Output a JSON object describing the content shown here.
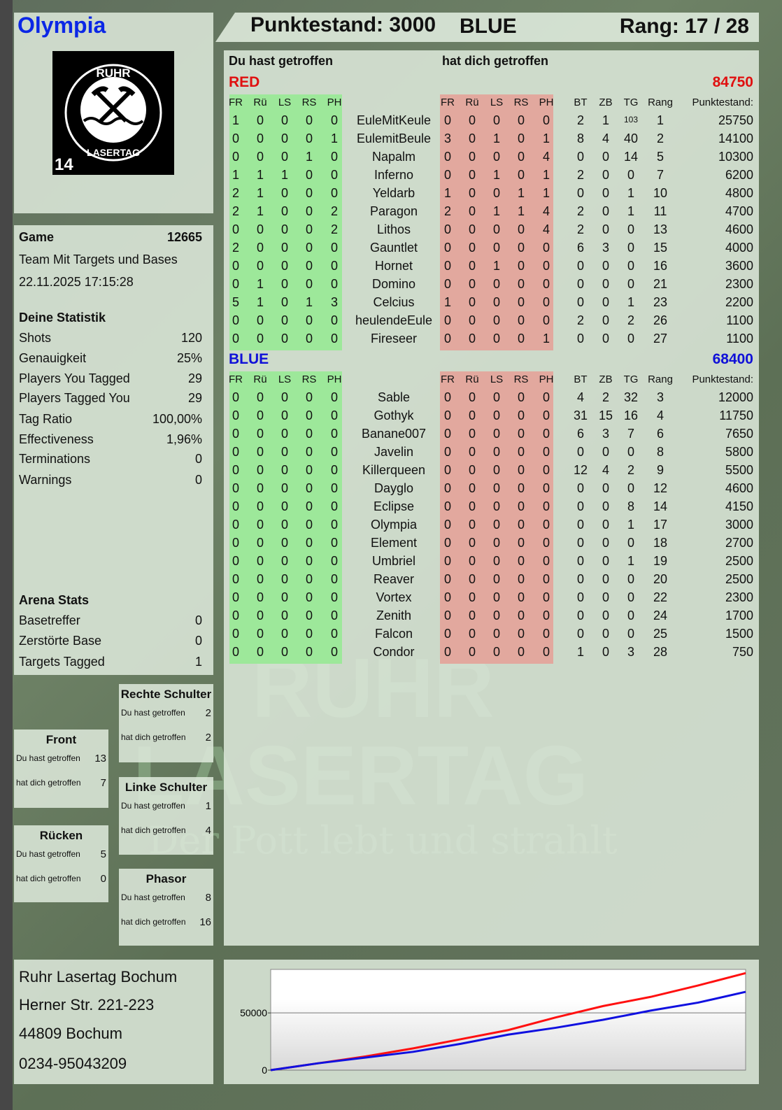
{
  "player": {
    "name": "Olympia",
    "name_color": "#0b27e6"
  },
  "logo": {
    "top_text": "RUHR",
    "bottom_text": "LASERTAG",
    "badge": "14"
  },
  "header": {
    "score_label": "Punktestand: 3000",
    "team": "BLUE",
    "rank_label": "Rang: 17 / 28"
  },
  "table_headers": {
    "you_hit": "Du hast getroffen",
    "hit_you": "hat dich getroffen",
    "hit_cols": [
      "FR",
      "Rü",
      "LS",
      "RS",
      "PH"
    ],
    "stat_cols": [
      "BT",
      "ZB",
      "TG",
      "Rang"
    ],
    "score_col": "Punktestand:"
  },
  "teams": [
    {
      "name": "RED",
      "total": "84750",
      "color": "#e01010",
      "players": [
        {
          "name": "EuleMitKeule",
          "you": [
            1,
            0,
            0,
            0,
            0
          ],
          "them": [
            0,
            0,
            0,
            0,
            0
          ],
          "bt": 2,
          "zb": 1,
          "tg": 103,
          "rang": 1,
          "score": 25750
        },
        {
          "name": "EulemitBeule",
          "you": [
            0,
            0,
            0,
            0,
            1
          ],
          "them": [
            3,
            0,
            1,
            0,
            1
          ],
          "bt": 8,
          "zb": 4,
          "tg": 40,
          "rang": 2,
          "score": 14100
        },
        {
          "name": "Napalm",
          "you": [
            0,
            0,
            0,
            1,
            0
          ],
          "them": [
            0,
            0,
            0,
            0,
            4
          ],
          "bt": 0,
          "zb": 0,
          "tg": 14,
          "rang": 5,
          "score": 10300
        },
        {
          "name": "Inferno",
          "you": [
            1,
            1,
            1,
            0,
            0
          ],
          "them": [
            0,
            0,
            1,
            0,
            1
          ],
          "bt": 2,
          "zb": 0,
          "tg": 0,
          "rang": 7,
          "score": 6200
        },
        {
          "name": "Yeldarb",
          "you": [
            2,
            1,
            0,
            0,
            0
          ],
          "them": [
            1,
            0,
            0,
            1,
            1
          ],
          "bt": 0,
          "zb": 0,
          "tg": 1,
          "rang": 10,
          "score": 4800
        },
        {
          "name": "Paragon",
          "you": [
            2,
            1,
            0,
            0,
            2
          ],
          "them": [
            2,
            0,
            1,
            1,
            4
          ],
          "bt": 2,
          "zb": 0,
          "tg": 1,
          "rang": 11,
          "score": 4700
        },
        {
          "name": "Lithos",
          "you": [
            0,
            0,
            0,
            0,
            2
          ],
          "them": [
            0,
            0,
            0,
            0,
            4
          ],
          "bt": 2,
          "zb": 0,
          "tg": 0,
          "rang": 13,
          "score": 4600
        },
        {
          "name": "Gauntlet",
          "you": [
            2,
            0,
            0,
            0,
            0
          ],
          "them": [
            0,
            0,
            0,
            0,
            0
          ],
          "bt": 6,
          "zb": 3,
          "tg": 0,
          "rang": 15,
          "score": 4000
        },
        {
          "name": "Hornet",
          "you": [
            0,
            0,
            0,
            0,
            0
          ],
          "them": [
            0,
            0,
            1,
            0,
            0
          ],
          "bt": 0,
          "zb": 0,
          "tg": 0,
          "rang": 16,
          "score": 3600
        },
        {
          "name": "Domino",
          "you": [
            0,
            1,
            0,
            0,
            0
          ],
          "them": [
            0,
            0,
            0,
            0,
            0
          ],
          "bt": 0,
          "zb": 0,
          "tg": 0,
          "rang": 21,
          "score": 2300
        },
        {
          "name": "Celcius",
          "you": [
            5,
            1,
            0,
            1,
            3
          ],
          "them": [
            1,
            0,
            0,
            0,
            0
          ],
          "bt": 0,
          "zb": 0,
          "tg": 1,
          "rang": 23,
          "score": 2200
        },
        {
          "name": "heulendeEule",
          "you": [
            0,
            0,
            0,
            0,
            0
          ],
          "them": [
            0,
            0,
            0,
            0,
            0
          ],
          "bt": 2,
          "zb": 0,
          "tg": 2,
          "rang": 26,
          "score": 1100
        },
        {
          "name": "Fireseer",
          "you": [
            0,
            0,
            0,
            0,
            0
          ],
          "them": [
            0,
            0,
            0,
            0,
            1
          ],
          "bt": 0,
          "zb": 0,
          "tg": 0,
          "rang": 27,
          "score": 1100
        }
      ]
    },
    {
      "name": "BLUE",
      "total": "68400",
      "color": "#1010d8",
      "players": [
        {
          "name": "Sable",
          "you": [
            0,
            0,
            0,
            0,
            0
          ],
          "them": [
            0,
            0,
            0,
            0,
            0
          ],
          "bt": 4,
          "zb": 2,
          "tg": 32,
          "rang": 3,
          "score": 12000
        },
        {
          "name": "Gothyk",
          "you": [
            0,
            0,
            0,
            0,
            0
          ],
          "them": [
            0,
            0,
            0,
            0,
            0
          ],
          "bt": 31,
          "zb": 15,
          "tg": 16,
          "rang": 4,
          "score": 11750
        },
        {
          "name": "Banane007",
          "you": [
            0,
            0,
            0,
            0,
            0
          ],
          "them": [
            0,
            0,
            0,
            0,
            0
          ],
          "bt": 6,
          "zb": 3,
          "tg": 7,
          "rang": 6,
          "score": 7650
        },
        {
          "name": "Javelin",
          "you": [
            0,
            0,
            0,
            0,
            0
          ],
          "them": [
            0,
            0,
            0,
            0,
            0
          ],
          "bt": 0,
          "zb": 0,
          "tg": 0,
          "rang": 8,
          "score": 5800
        },
        {
          "name": "Killerqueen",
          "you": [
            0,
            0,
            0,
            0,
            0
          ],
          "them": [
            0,
            0,
            0,
            0,
            0
          ],
          "bt": 12,
          "zb": 4,
          "tg": 2,
          "rang": 9,
          "score": 5500
        },
        {
          "name": "Dayglo",
          "you": [
            0,
            0,
            0,
            0,
            0
          ],
          "them": [
            0,
            0,
            0,
            0,
            0
          ],
          "bt": 0,
          "zb": 0,
          "tg": 0,
          "rang": 12,
          "score": 4600
        },
        {
          "name": "Eclipse",
          "you": [
            0,
            0,
            0,
            0,
            0
          ],
          "them": [
            0,
            0,
            0,
            0,
            0
          ],
          "bt": 0,
          "zb": 0,
          "tg": 8,
          "rang": 14,
          "score": 4150
        },
        {
          "name": "Olympia",
          "you": [
            0,
            0,
            0,
            0,
            0
          ],
          "them": [
            0,
            0,
            0,
            0,
            0
          ],
          "bt": 0,
          "zb": 0,
          "tg": 1,
          "rang": 17,
          "score": 3000
        },
        {
          "name": "Element",
          "you": [
            0,
            0,
            0,
            0,
            0
          ],
          "them": [
            0,
            0,
            0,
            0,
            0
          ],
          "bt": 0,
          "zb": 0,
          "tg": 0,
          "rang": 18,
          "score": 2700
        },
        {
          "name": "Umbriel",
          "you": [
            0,
            0,
            0,
            0,
            0
          ],
          "them": [
            0,
            0,
            0,
            0,
            0
          ],
          "bt": 0,
          "zb": 0,
          "tg": 1,
          "rang": 19,
          "score": 2500
        },
        {
          "name": "Reaver",
          "you": [
            0,
            0,
            0,
            0,
            0
          ],
          "them": [
            0,
            0,
            0,
            0,
            0
          ],
          "bt": 0,
          "zb": 0,
          "tg": 0,
          "rang": 20,
          "score": 2500
        },
        {
          "name": "Vortex",
          "you": [
            0,
            0,
            0,
            0,
            0
          ],
          "them": [
            0,
            0,
            0,
            0,
            0
          ],
          "bt": 0,
          "zb": 0,
          "tg": 0,
          "rang": 22,
          "score": 2300
        },
        {
          "name": "Zenith",
          "you": [
            0,
            0,
            0,
            0,
            0
          ],
          "them": [
            0,
            0,
            0,
            0,
            0
          ],
          "bt": 0,
          "zb": 0,
          "tg": 0,
          "rang": 24,
          "score": 1700
        },
        {
          "name": "Falcon",
          "you": [
            0,
            0,
            0,
            0,
            0
          ],
          "them": [
            0,
            0,
            0,
            0,
            0
          ],
          "bt": 0,
          "zb": 0,
          "tg": 0,
          "rang": 25,
          "score": 1500
        },
        {
          "name": "Condor",
          "you": [
            0,
            0,
            0,
            0,
            0
          ],
          "them": [
            0,
            0,
            0,
            0,
            0
          ],
          "bt": 1,
          "zb": 0,
          "tg": 3,
          "rang": 28,
          "score": 750
        }
      ]
    }
  ],
  "game": {
    "label": "Game",
    "number": "12665",
    "mode": "Team Mit Targets und Bases",
    "datetime": "22.11.2025 17:15:28"
  },
  "stats": {
    "title": "Deine Statistik",
    "rows": [
      {
        "label": "Shots",
        "value": "120"
      },
      {
        "label": "Genauigkeit",
        "value": "25%"
      },
      {
        "label": "Players You Tagged",
        "value": "29"
      },
      {
        "label": "Players Tagged You",
        "value": "29"
      },
      {
        "label": "Tag Ratio",
        "value": "100,00%"
      },
      {
        "label": "Effectiveness",
        "value": "1,96%"
      },
      {
        "label": "Terminations",
        "value": "0"
      },
      {
        "label": "Warnings",
        "value": "0"
      }
    ]
  },
  "arena": {
    "title": "Arena Stats",
    "rows": [
      {
        "label": "Basetreffer",
        "value": "0"
      },
      {
        "label": "Zerstörte Base",
        "value": "0"
      },
      {
        "label": "Targets Tagged",
        "value": "1"
      }
    ]
  },
  "zones": [
    {
      "title": "Front",
      "you_label": "Du hast getroffen",
      "you": "13",
      "them_label": "hat dich getroffen",
      "them": "7"
    },
    {
      "title": "Rücken",
      "you_label": "Du hast getroffen",
      "you": "5",
      "them_label": "hat dich getroffen",
      "them": "0"
    },
    {
      "title": "Rechte Schulter",
      "you_label": "Du hast getroffen",
      "you": "2",
      "them_label": "hat dich getroffen",
      "them": "2"
    },
    {
      "title": "Linke Schulter",
      "you_label": "Du hast getroffen",
      "you": "1",
      "them_label": "hat dich getroffen",
      "them": "4"
    },
    {
      "title": "Phasor",
      "you_label": "Du hast getroffen",
      "you": "8",
      "them_label": "hat dich getroffen",
      "them": "16"
    }
  ],
  "address": [
    "Ruhr Lasertag Bochum",
    "Herner Str. 221-223",
    "44809 Bochum",
    "0234-95043209"
  ],
  "watermark": {
    "line1": "RUHR",
    "line2": "LASERTAG",
    "slogan": "Der Pott lebt und strahlt"
  },
  "colors": {
    "you_hit_band": "#9de89a",
    "hit_you_band": "#e2a89e"
  },
  "chart_data": {
    "type": "line",
    "ylim": [
      0,
      88000
    ],
    "yticks": [
      0,
      50000
    ],
    "grid": true,
    "x": [
      0,
      1,
      2,
      3,
      4,
      5,
      6,
      7,
      8,
      9,
      10
    ],
    "series": [
      {
        "color": "#ff1010",
        "values": [
          0,
          6000,
          12000,
          19000,
          27000,
          35000,
          46000,
          56000,
          64000,
          74000,
          84750
        ]
      },
      {
        "color": "#1010e0",
        "values": [
          0,
          6000,
          11000,
          16000,
          23000,
          31000,
          37000,
          44000,
          52000,
          59000,
          68400
        ]
      }
    ]
  }
}
